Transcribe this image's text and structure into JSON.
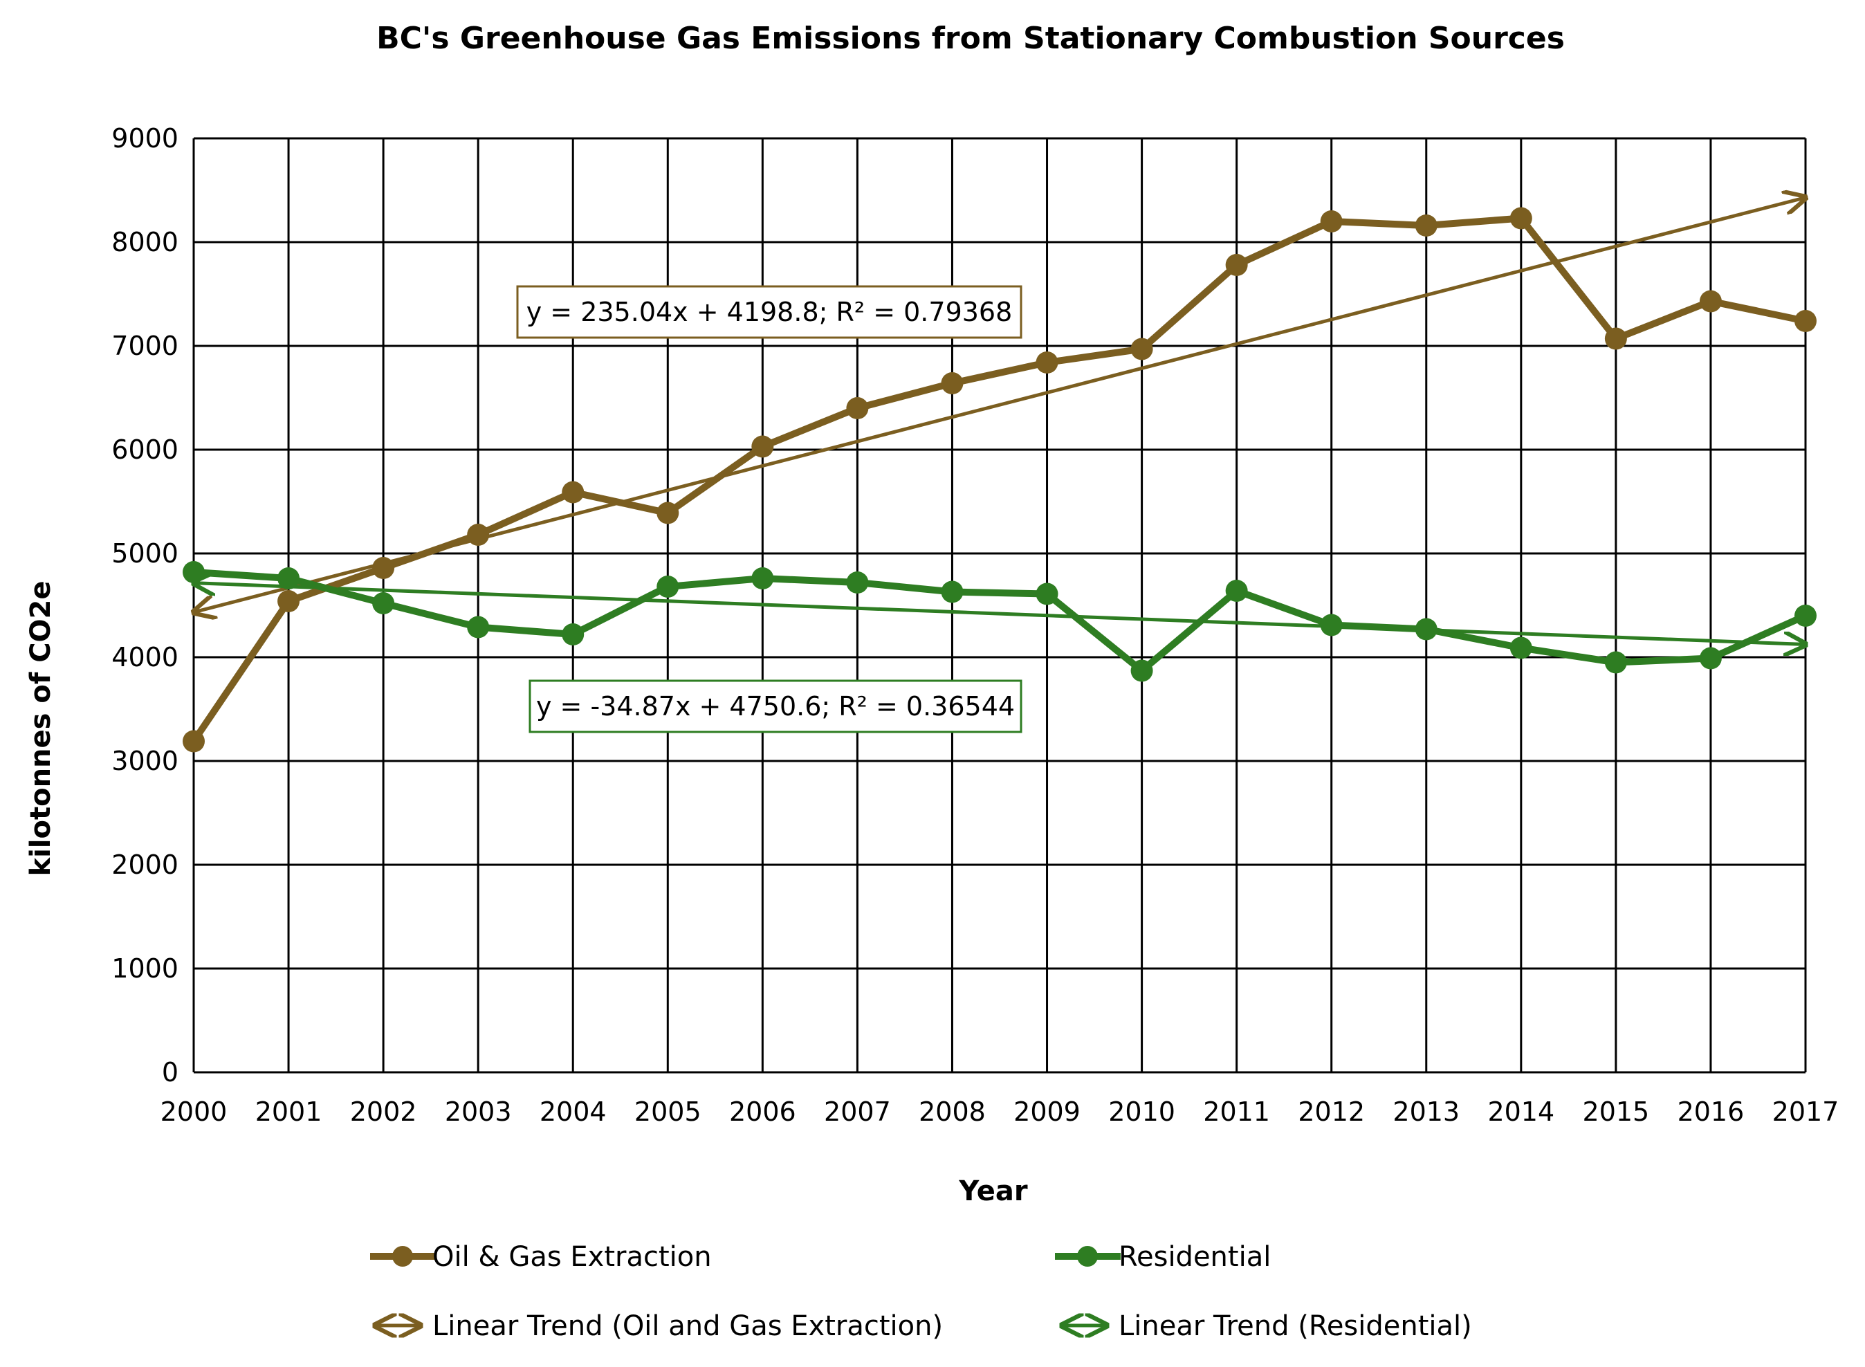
{
  "chart_data": {
    "type": "line",
    "title": "BC's Greenhouse Gas Emissions from Stationary Combustion Sources",
    "xlabel": "Year",
    "ylabel": "kilotonnes of CO2e",
    "x": [
      "2000",
      "2001",
      "2002",
      "2003",
      "2004",
      "2005",
      "2006",
      "2007",
      "2008",
      "2009",
      "2010",
      "2011",
      "2012",
      "2013",
      "2014",
      "2015",
      "2016",
      "2017"
    ],
    "ylim": [
      0,
      9000
    ],
    "yticks": [
      "0",
      "1000",
      "2000",
      "3000",
      "4000",
      "5000",
      "6000",
      "7000",
      "8000",
      "9000"
    ],
    "grid": true,
    "legend_position": "bottom",
    "series": [
      {
        "name": "Oil & Gas Extraction",
        "color": "#7B5E20",
        "values": [
          3190,
          4540,
          4860,
          5180,
          5590,
          5390,
          6030,
          6400,
          6640,
          6840,
          6970,
          7780,
          8200,
          8160,
          8230,
          7070,
          7430,
          7240
        ]
      },
      {
        "name": "Residential",
        "color": "#2E7D22",
        "values": [
          4820,
          4760,
          4520,
          4290,
          4220,
          4680,
          4760,
          4720,
          4630,
          4610,
          3870,
          4640,
          4310,
          4270,
          4090,
          3950,
          3990,
          4400
        ]
      }
    ],
    "trendlines": [
      {
        "name": "Linear Trend (Oil and Gas Extraction)",
        "color": "#7B5E20",
        "slope": 235.04,
        "intercept": 4198.8,
        "equation": "y = 235.04x + 4198.8; R² = 0.79368"
      },
      {
        "name": "Linear Trend (Residential)",
        "color": "#2E7D22",
        "slope": -34.87,
        "intercept": 4750.6,
        "equation": "y = -34.87x + 4750.6; R² = 0.36544"
      }
    ]
  }
}
